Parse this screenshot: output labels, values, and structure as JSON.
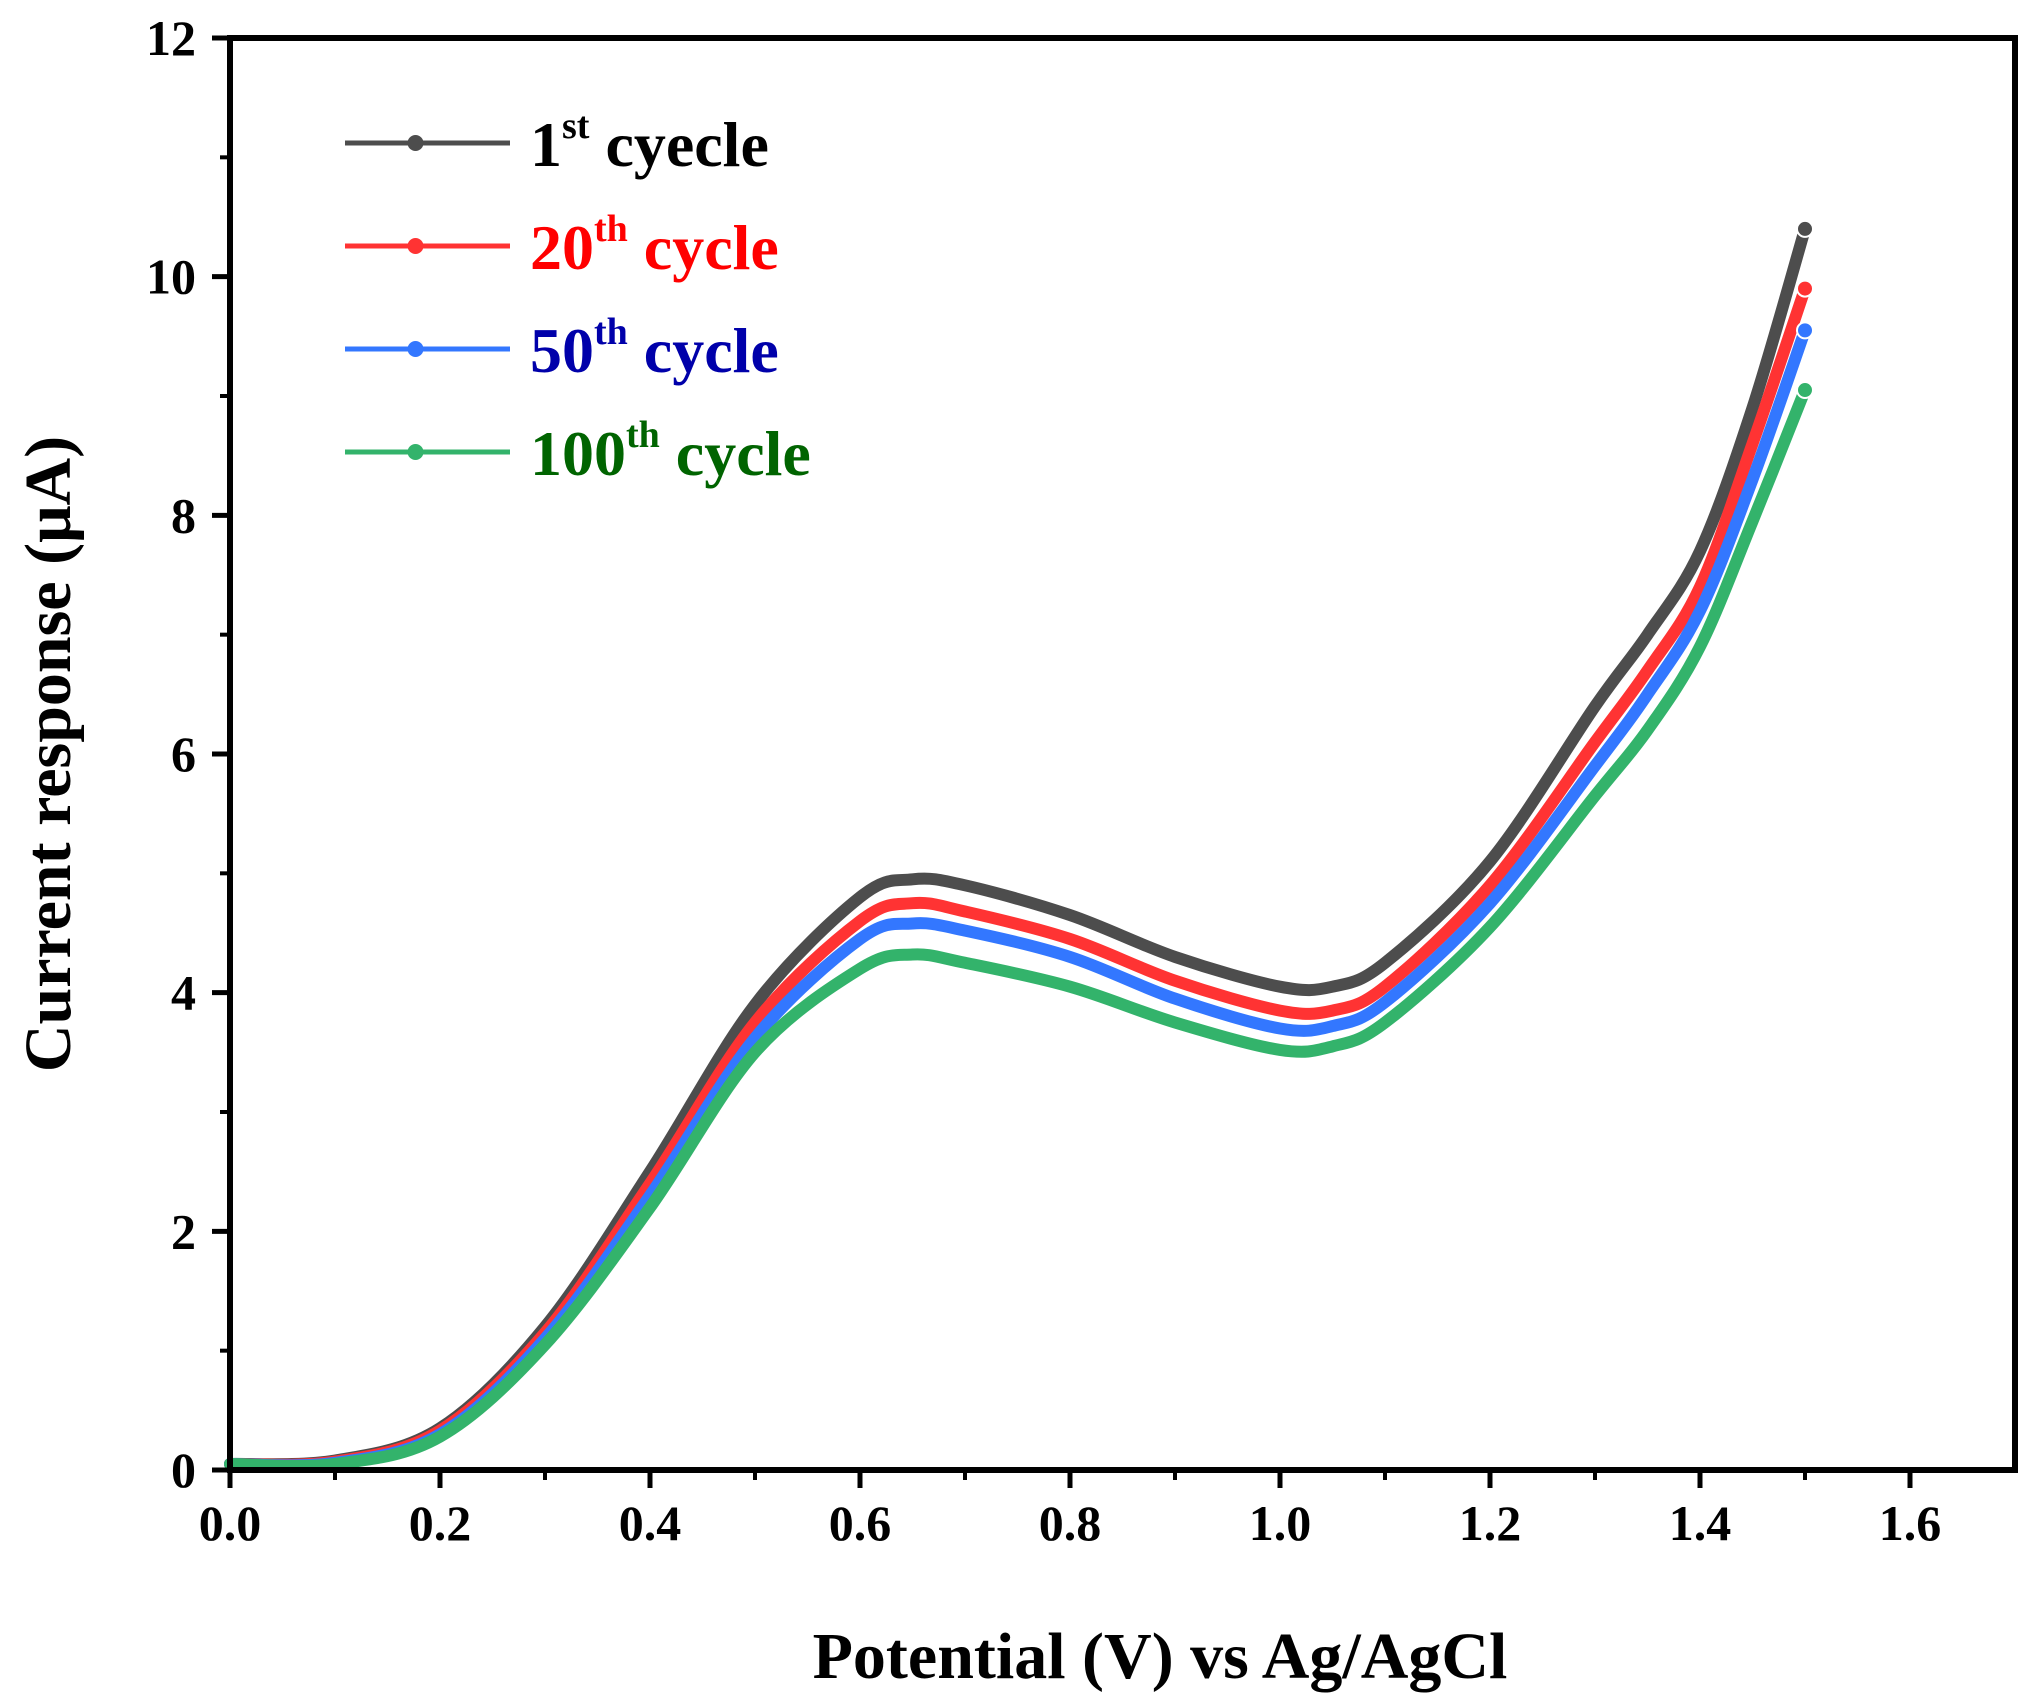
{
  "chart_data": {
    "type": "line",
    "title": "",
    "xlabel": "Potential (V) vs Ag/AgCl",
    "ylabel": "Current response (μA)",
    "xlim": [
      0.0,
      1.7
    ],
    "ylim": [
      0,
      12
    ],
    "xticks": [
      "0.0",
      "0.2",
      "0.4",
      "0.6",
      "0.8",
      "1.0",
      "1.2",
      "1.4",
      "1.6"
    ],
    "yticks": [
      "0",
      "2",
      "4",
      "6",
      "8",
      "10",
      "12"
    ],
    "grid": false,
    "legend_position": "top-left",
    "x": [
      0.0,
      0.1,
      0.2,
      0.3,
      0.4,
      0.5,
      0.6,
      0.65,
      0.7,
      0.8,
      0.9,
      1.0,
      1.05,
      1.1,
      1.2,
      1.3,
      1.35,
      1.4,
      1.45,
      1.5
    ],
    "series": [
      {
        "name": "1st cyecle",
        "label_main": "1",
        "label_sup": "st",
        "label_rest": " cyecle",
        "color": "#4d4d4d",
        "text_color": "#000000",
        "values": [
          0.05,
          0.08,
          0.35,
          1.2,
          2.5,
          3.9,
          4.8,
          4.95,
          4.9,
          4.65,
          4.3,
          4.05,
          4.05,
          4.25,
          5.1,
          6.4,
          7.0,
          7.7,
          8.9,
          10.4
        ]
      },
      {
        "name": "20th cycle",
        "label_main": "20",
        "label_sup": "th",
        "label_rest": " cycle",
        "color": "#ff3333",
        "text_color": "#ff0000",
        "values": [
          0.05,
          0.07,
          0.33,
          1.15,
          2.4,
          3.75,
          4.6,
          4.75,
          4.68,
          4.45,
          4.1,
          3.85,
          3.85,
          4.05,
          4.9,
          6.1,
          6.7,
          7.4,
          8.6,
          9.9
        ]
      },
      {
        "name": "50th cycle",
        "label_main": "50",
        "label_sup": "th",
        "label_rest": " cycle",
        "color": "#3377ff",
        "text_color": "#0000aa",
        "values": [
          0.05,
          0.06,
          0.3,
          1.1,
          2.3,
          3.62,
          4.45,
          4.58,
          4.52,
          4.3,
          3.95,
          3.7,
          3.72,
          3.92,
          4.75,
          5.9,
          6.5,
          7.2,
          8.3,
          9.55
        ]
      },
      {
        "name": "100th cycle",
        "label_main": "100",
        "label_sup": "th",
        "label_rest": " cycle",
        "color": "#33b36b",
        "text_color": "#006400",
        "values": [
          0.05,
          0.05,
          0.28,
          1.05,
          2.2,
          3.5,
          4.2,
          4.32,
          4.25,
          4.05,
          3.75,
          3.52,
          3.55,
          3.75,
          4.55,
          5.65,
          6.2,
          6.9,
          7.95,
          9.05
        ]
      }
    ]
  }
}
